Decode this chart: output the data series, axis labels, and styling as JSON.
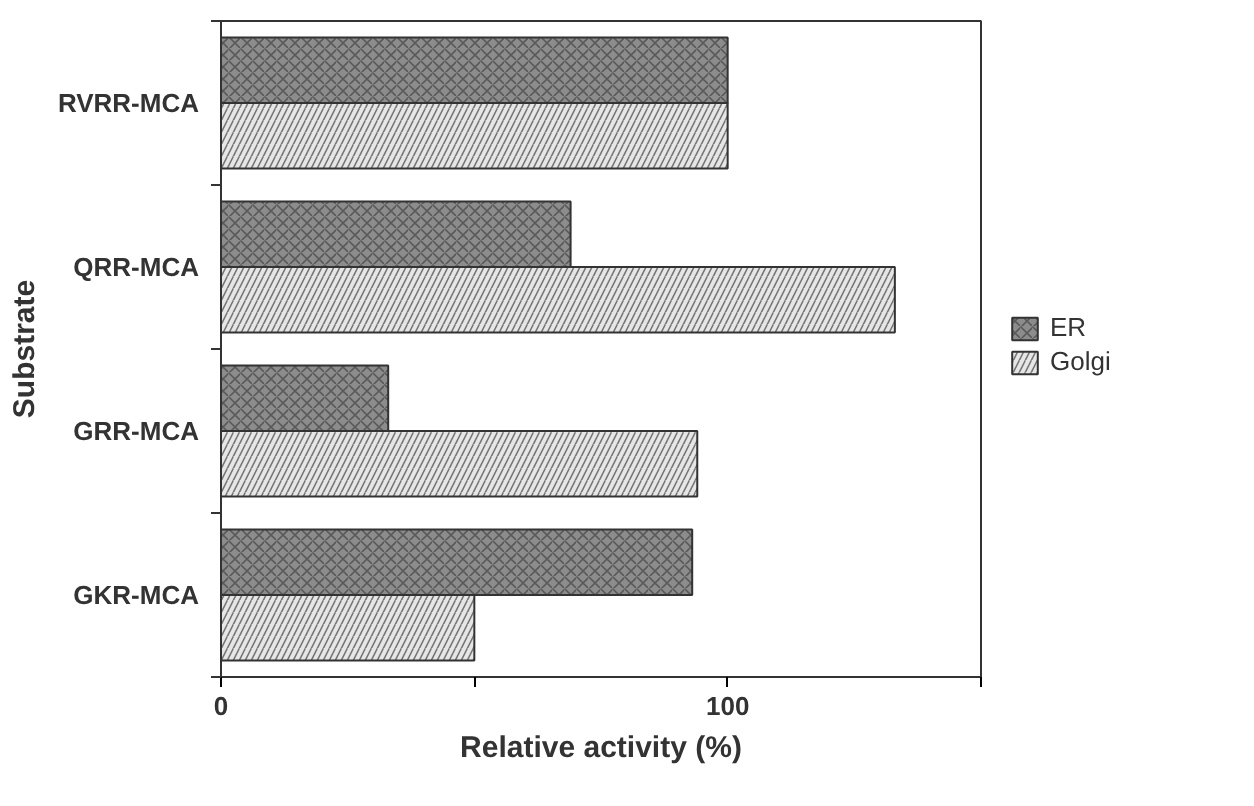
{
  "chart_data": {
    "type": "bar",
    "orientation": "horizontal",
    "xlabel": "Relative activity (%)",
    "ylabel": "Substrate",
    "categories": [
      "RVRR-MCA",
      "QRR-MCA",
      "GRR-MCA",
      "GKR-MCA"
    ],
    "series": [
      {
        "name": "ER",
        "color": "#8c8c8c",
        "values": [
          100,
          69,
          33,
          93
        ]
      },
      {
        "name": "Golgi",
        "color": "#e6e6e6",
        "values": [
          100,
          133,
          94,
          50
        ]
      }
    ],
    "xlim": [
      0,
      150
    ],
    "xticks": [
      0,
      {
        "value": 50,
        "label": null
      },
      100,
      {
        "value": 150,
        "label": null
      }
    ],
    "grid": false,
    "legend": "right"
  }
}
